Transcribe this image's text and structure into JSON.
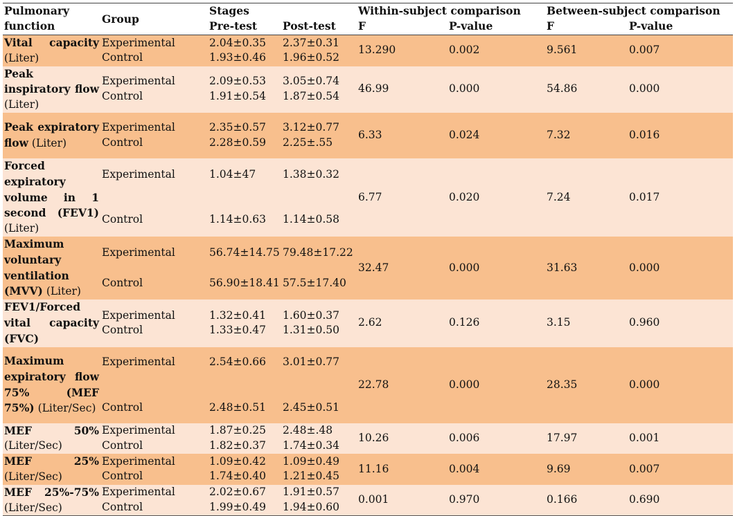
{
  "header": {
    "col_function": "Pulmonary function",
    "col_group": "Group",
    "col_stages": "Stages",
    "col_pre": "Pre-test",
    "col_post": "Post-test",
    "col_within": "Within-subject comparison",
    "col_between": "Between-subject comparison",
    "col_f": "F",
    "col_p": "P-value"
  },
  "rows": [
    {
      "name_bold": "Vital capacity",
      "name_rest": "(Liter)",
      "g1": "Experimental",
      "g2": "Control",
      "pre1": "2.04±0.35",
      "post1": "2.37±0.31",
      "pre2": "1.93±0.46",
      "post2": "1.96±0.52",
      "wf": "13.290",
      "wp": "0.002",
      "bf": "9.561",
      "bp": "0.007"
    },
    {
      "name_bold": "Peak inspiratory flow",
      "name_rest": "(Liter)",
      "g1": "Experimental",
      "g2": "Control",
      "pre1": "2.09±0.53",
      "post1": "3.05±0.74",
      "pre2": "1.91±0.54",
      "post2": "1.87±0.54",
      "wf": "46.99",
      "wp": "0.000",
      "bf": "54.86",
      "bp": "0.000"
    },
    {
      "name_bold": "Peak expiratory flow",
      "name_rest": "(Liter)",
      "g1": "Experimental",
      "g2": "Control",
      "pre1": "2.35±0.57",
      "post1": "3.12±0.77",
      "pre2": "2.28±0.59",
      "post2": "2.25±.55",
      "wf": "6.33",
      "wp": "0.024",
      "bf": "7.32",
      "bp": "0.016"
    },
    {
      "name_bold": "Forced expiratory volume in 1 second (FEV1)",
      "name_rest": "(Liter)",
      "g1": "Experimental",
      "g2": "Control",
      "pre1": "1.04±47",
      "post1": "1.38±0.32",
      "pre2": "1.14±0.63",
      "post2": "1.14±0.58",
      "wf": "6.77",
      "wp": "0.020",
      "bf": "7.24",
      "bp": "0.017"
    },
    {
      "name_bold": "Maximum voluntary ventilation (MVV)",
      "name_rest": "(Liter)",
      "g1": "Experimental",
      "g2": "Control",
      "pre1": "56.74±14.75",
      "post1": "79.48±17.22",
      "pre2": "56.90±18.41",
      "post2": "57.5±17.40",
      "wf": "32.47",
      "wp": "0.000",
      "bf": "31.63",
      "bp": "0.000"
    },
    {
      "name_bold": "FEV1/Forced vital capacity (FVC)",
      "name_rest": "",
      "g1": "Experimental",
      "g2": "Control",
      "pre1": "1.32±0.41",
      "post1": "1.60±0.37",
      "pre2": "1.33±0.47",
      "post2": "1.31±0.50",
      "wf": "2.62",
      "wp": "0.126",
      "bf": "3.15",
      "bp": "0.960"
    },
    {
      "name_bold": "Maximum expiratory flow 75% (MEF 75%)",
      "name_rest": "(Liter/Sec)",
      "g1": "Experimental",
      "g2": "Control",
      "pre1": "2.54±0.66",
      "post1": "3.01±0.77",
      "pre2": "2.48±0.51",
      "post2": "2.45±0.51",
      "wf": "22.78",
      "wp": "0.000",
      "bf": "28.35",
      "bp": "0.000"
    },
    {
      "name_bold": "MEF 50%",
      "name_rest": "(Liter/Sec)",
      "g1": "Experimental",
      "g2": "Control",
      "pre1": "1.87±0.25",
      "post1": "2.48±.48",
      "pre2": "1.82±0.37",
      "post2": "1.74±0.34",
      "wf": "10.26",
      "wp": "0.006",
      "bf": "17.97",
      "bp": "0.001"
    },
    {
      "name_bold": "MEF 25%",
      "name_rest": "(Liter/Sec)",
      "g1": "Experimental",
      "g2": "Control",
      "pre1": "1.09±0.42",
      "post1": "1.09±0.49",
      "pre2": "1.74±0.40",
      "post2": "1.21±0.45",
      "wf": "11.16",
      "wp": "0.004",
      "bf": "9.69",
      "bp": "0.007"
    },
    {
      "name_bold": "MEF 25%-75%",
      "name_rest": "(Liter/Sec)",
      "g1": "Experimental",
      "g2": "Control",
      "pre1": "2.02±0.67",
      "post1": "1.91±0.57",
      "pre2": "1.99±0.49",
      "post2": "1.94±0.60",
      "wf": "0.001",
      "wp": "0.970",
      "bf": "0.166",
      "bp": "0.690"
    }
  ],
  "colors": {
    "band_dark": "#f8bf8d",
    "band_light": "#fce4d4"
  }
}
